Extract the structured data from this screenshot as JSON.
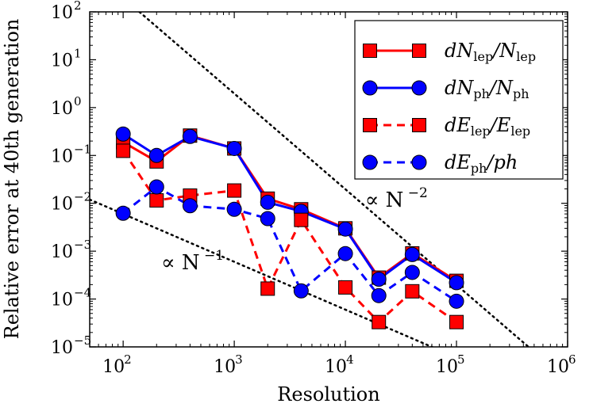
{
  "chart_data": {
    "type": "line",
    "xlabel": "Resolution",
    "ylabel": "Relative error at 40th generation",
    "xscale": "log",
    "yscale": "log",
    "xlim": [
      50,
      1000000
    ],
    "ylim": [
      1e-05,
      100
    ],
    "xticks": [
      {
        "base": "10",
        "exp": "2",
        "value": 100
      },
      {
        "base": "10",
        "exp": "3",
        "value": 1000
      },
      {
        "base": "10",
        "exp": "4",
        "value": 10000
      },
      {
        "base": "10",
        "exp": "5",
        "value": 100000
      },
      {
        "base": "10",
        "exp": "6",
        "value": 1000000
      }
    ],
    "yticks": [
      {
        "base": "10",
        "exp": "−5",
        "value": 1e-05
      },
      {
        "base": "10",
        "exp": "−4",
        "value": 0.0001
      },
      {
        "base": "10",
        "exp": "−3",
        "value": 0.001
      },
      {
        "base": "10",
        "exp": "−2",
        "value": 0.01
      },
      {
        "base": "10",
        "exp": "−1",
        "value": 0.1
      },
      {
        "base": "10",
        "exp": "0",
        "value": 1
      },
      {
        "base": "10",
        "exp": "1",
        "value": 10
      },
      {
        "base": "10",
        "exp": "2",
        "value": 100
      }
    ],
    "x": [
      100,
      200,
      400,
      1000,
      2000,
      4000,
      10000,
      20000,
      40000,
      100000
    ],
    "series": [
      {
        "label_main": "dN",
        "label_sub": "lep",
        "label_div": "/N",
        "label_sub2": "lep",
        "color": "#ff0000",
        "marker": "square",
        "linestyle": "solid",
        "values": [
          0.19,
          0.075,
          0.26,
          0.14,
          0.0125,
          0.0075,
          0.003,
          0.00028,
          0.0009,
          0.00024
        ]
      },
      {
        "label_main": "dN",
        "label_sub": "ph",
        "label_div": "/N",
        "label_sub2": "ph",
        "color": "#0000ff",
        "marker": "circle",
        "linestyle": "solid",
        "values": [
          0.28,
          0.1,
          0.25,
          0.14,
          0.0105,
          0.0068,
          0.0029,
          0.00026,
          0.00085,
          0.00022
        ]
      },
      {
        "label_main": "dE",
        "label_sub": "lep",
        "label_div": "/E",
        "label_sub2": "lep",
        "color": "#ff0000",
        "marker": "square",
        "linestyle": "dashed",
        "values": [
          0.125,
          0.0115,
          0.0145,
          0.0185,
          0.000165,
          0.0045,
          0.000175,
          3.3e-05,
          0.000145,
          3.3e-05
        ]
      },
      {
        "label_main": "dE",
        "label_sub": "ph",
        "label_div": "/ph",
        "label_sub2": "",
        "color": "#0000ff",
        "marker": "circle",
        "linestyle": "dashed",
        "values": [
          0.0062,
          0.022,
          0.0089,
          0.0075,
          0.0048,
          0.000148,
          0.00089,
          0.000118,
          0.00036,
          9e-05
        ]
      }
    ],
    "reference_lines": [
      {
        "slope": -2,
        "points": [
          [
            140,
            100
          ],
          [
            600000,
            5.5e-06
          ]
        ]
      },
      {
        "slope": -1,
        "points": [
          [
            50,
            0.012
          ],
          [
            200000,
            3e-06
          ]
        ]
      }
    ],
    "annotations": [
      {
        "text": "∝ N",
        "exp": "−2",
        "x": 15000,
        "y": 0.0085
      },
      {
        "text": "∝ N",
        "exp": "−1",
        "x": 220,
        "y": 0.00042
      }
    ],
    "legend_position": "top-right",
    "grid": false
  }
}
